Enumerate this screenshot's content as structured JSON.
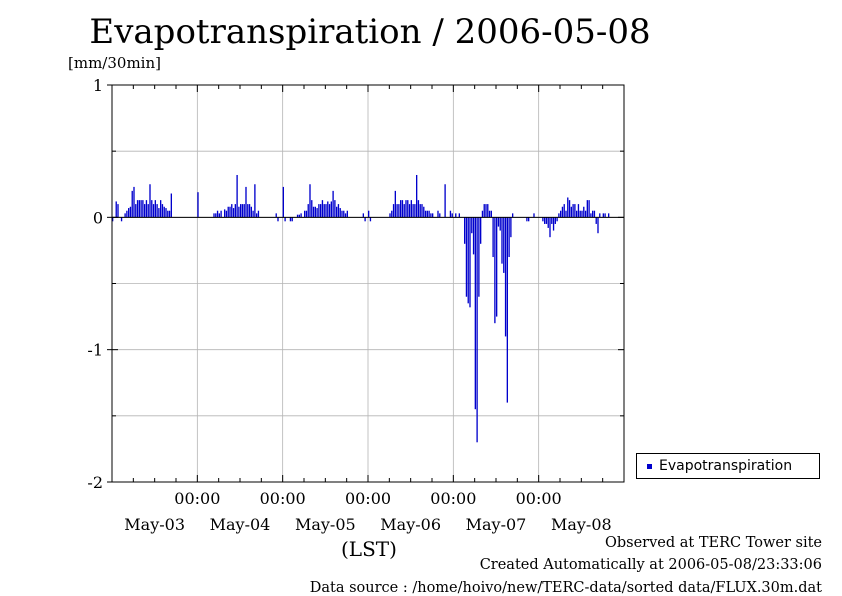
{
  "title": "Evapotranspiration / 2006-05-08",
  "unit_label": "[mm/30min]",
  "xaxis_label": "(LST)",
  "legend_label": "Evapotranspiration",
  "footer": {
    "line1": "Observed at TERC Tower site",
    "line2": "Created Automatically at 2006-05-08/23:33:06",
    "line3": "Data source : /home/hoivo/new/TERC-data/sorted data/FLUX.30m.dat"
  },
  "colors": {
    "series": "#0000cc",
    "grid": "#b4b4b4",
    "axis": "#000000"
  },
  "chart_data": {
    "type": "bar",
    "title": "Evapotranspiration / 2006-05-08",
    "ylabel": "[mm/30min]",
    "xlabel": "(LST)",
    "ylim": [
      -2,
      1
    ],
    "yticks": [
      1,
      0,
      -1,
      -2
    ],
    "ytick_labels": [
      "1",
      "0",
      "-1",
      "-2"
    ],
    "xlim_days": [
      "2006-05-03 00:00",
      "2006-05-09 00:00"
    ],
    "x_midnight_ticks": [
      "00:00",
      "00:00",
      "00:00",
      "00:00",
      "00:00"
    ],
    "x_date_labels": [
      "May-03",
      "May-04",
      "May-05",
      "May-06",
      "May-07",
      "May-08"
    ],
    "grid": true,
    "legend_placement": "right",
    "series": [
      {
        "name": "Evapotranspiration",
        "interval": "30min",
        "days": [
          {
            "date": "2006-05-03",
            "values": [
              -0.03,
              0,
              0.12,
              0.1,
              0,
              -0.03,
              0,
              0.03,
              0.05,
              0.07,
              0.08,
              0.2,
              0.23,
              0.1,
              0.13,
              0.13,
              0.13,
              0.13,
              0.1,
              0.13,
              0.1,
              0.25,
              0.13,
              0.1,
              0.13,
              0.1,
              0.07,
              0.13,
              0.1,
              0.08,
              0.07,
              0.05,
              0.05,
              0.18,
              0,
              0,
              0,
              0,
              0,
              0,
              0,
              0,
              0,
              0,
              0,
              0,
              0,
              0
            ]
          },
          {
            "date": "2006-05-04",
            "values": [
              0.19,
              0,
              0,
              0,
              0,
              0,
              0,
              0,
              0,
              0.03,
              0.03,
              0.05,
              0.03,
              0.05,
              0,
              0.06,
              0.05,
              0.08,
              0.08,
              0.1,
              0.07,
              0.1,
              0.32,
              0.08,
              0.1,
              0.1,
              0.1,
              0.23,
              0.1,
              0.1,
              0.08,
              0.05,
              0.25,
              0.03,
              0.05,
              0,
              0,
              0,
              0,
              0,
              0,
              0,
              0,
              0,
              0.03,
              -0.03,
              0,
              0
            ]
          },
          {
            "date": "2006-05-05",
            "values": [
              0.23,
              -0.03,
              0,
              0,
              -0.03,
              -0.03,
              0,
              0,
              0.02,
              0.02,
              0.03,
              0,
              0.05,
              0.05,
              0.1,
              0.25,
              0.13,
              0.08,
              0.08,
              0.07,
              0.1,
              0.1,
              0.13,
              0.1,
              0.1,
              0.12,
              0.1,
              0.12,
              0.2,
              0.13,
              0.08,
              0.1,
              0.07,
              0.05,
              0.05,
              0.03,
              0.05,
              0,
              0,
              0,
              0,
              0,
              0,
              0,
              0,
              0.03,
              -0.03,
              0
            ]
          },
          {
            "date": "2006-05-06",
            "values": [
              0.05,
              -0.03,
              0,
              0,
              0,
              0,
              0,
              0,
              0,
              0,
              0,
              0,
              0.03,
              0.05,
              0.1,
              0.2,
              0.1,
              0.1,
              0.13,
              0.13,
              0.1,
              0.13,
              0.13,
              0.1,
              0.13,
              0.1,
              0.1,
              0.32,
              0.13,
              0.1,
              0.1,
              0.08,
              0.05,
              0.05,
              0.05,
              0.03,
              0.03,
              0,
              0,
              0.05,
              0.03,
              0,
              0,
              0.25,
              0,
              0,
              0.05,
              0.03
            ]
          },
          {
            "date": "2006-05-07",
            "values": [
              0,
              0.03,
              0,
              0.03,
              0,
              0,
              -0.2,
              -0.6,
              -0.65,
              -0.68,
              -0.12,
              -0.28,
              -1.45,
              -1.7,
              -0.6,
              -0.2,
              0.05,
              0.1,
              0.1,
              0.1,
              0.05,
              0.05,
              -0.3,
              -0.8,
              -0.75,
              -0.07,
              -0.1,
              -0.35,
              -0.42,
              -0.9,
              -1.4,
              -0.3,
              -0.15,
              0.03,
              0,
              0,
              0,
              0,
              0,
              0,
              0,
              -0.03,
              -0.03,
              0,
              0,
              0.03,
              0,
              0
            ]
          },
          {
            "date": "2006-05-08",
            "values": [
              0,
              0,
              -0.03,
              -0.05,
              -0.05,
              -0.08,
              -0.15,
              -0.05,
              -0.1,
              -0.05,
              -0.03,
              0.03,
              0.05,
              0.08,
              0.1,
              0.05,
              0.15,
              0.13,
              0.08,
              0.1,
              0.1,
              0.05,
              0.1,
              0.05,
              0.05,
              0.08,
              0.05,
              0.13,
              0.13,
              0.03,
              0.05,
              0.05,
              -0.05,
              -0.12,
              0.03,
              0,
              0.03,
              0.03,
              0,
              0.03,
              0,
              0,
              0,
              0,
              0,
              0,
              0,
              0
            ]
          }
        ]
      }
    ]
  }
}
